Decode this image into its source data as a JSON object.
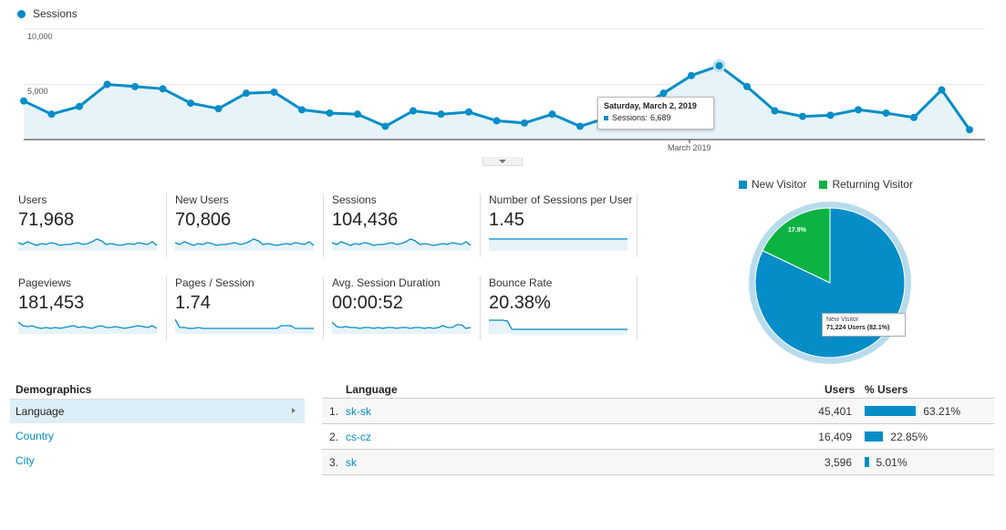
{
  "line_chart": {
    "legend_label": "Sessions",
    "y_ticks": [
      "10,000",
      "5,000"
    ],
    "x_label": "March 2019",
    "series_values": [
      3500,
      2300,
      3000,
      5000,
      4800,
      4600,
      3300,
      2800,
      4200,
      4300,
      2700,
      2400,
      2300,
      1200,
      2600,
      2300,
      2500,
      1700,
      1500,
      2300,
      1200,
      2000,
      2700,
      4200,
      5800,
      6689,
      4800,
      2600,
      2100,
      2200,
      2700,
      2400,
      2000,
      4500,
      900
    ],
    "tooltip": {
      "date": "Saturday, March 2, 2019",
      "series": "Sessions:",
      "value": "6,689"
    },
    "color": "#058dc7"
  },
  "metrics": [
    {
      "label": "Users",
      "value": "71,968"
    },
    {
      "label": "New Users",
      "value": "70,806"
    },
    {
      "label": "Sessions",
      "value": "104,436"
    },
    {
      "label": "Number of Sessions per User",
      "value": "1.45"
    },
    {
      "label": "Pageviews",
      "value": "181,453"
    },
    {
      "label": "Pages / Session",
      "value": "1.74"
    },
    {
      "label": "Avg. Session Duration",
      "value": "00:00:52"
    },
    {
      "label": "Bounce Rate",
      "value": "20.38%"
    }
  ],
  "pie": {
    "legend": [
      {
        "label": "New Visitor",
        "color": "#058dc7"
      },
      {
        "label": "Returning Visitor",
        "color": "#0cb343"
      }
    ],
    "new_pct": 82.1,
    "returning_label": "17.9%",
    "tooltip_title": "New Visitor",
    "tooltip_value": "71,224 Users (82.1%)"
  },
  "demographics": {
    "heading": "Demographics",
    "items": [
      "Language",
      "Country",
      "City"
    ]
  },
  "language_table": {
    "col_language": "Language",
    "col_users": "Users",
    "col_pct": "% Users",
    "rows": [
      {
        "num": "1.",
        "lang": "sk-sk",
        "users": "45,401",
        "pct": "63.21%",
        "share": 63.21
      },
      {
        "num": "2.",
        "lang": "cs-cz",
        "users": "16,409",
        "pct": "22.85%",
        "share": 22.85
      },
      {
        "num": "3.",
        "lang": "sk",
        "users": "3,596",
        "pct": "5.01%",
        "share": 5.01
      }
    ]
  }
}
